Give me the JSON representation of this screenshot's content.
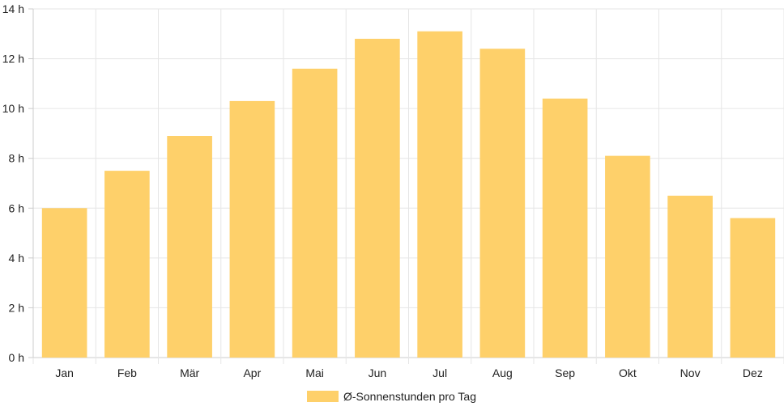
{
  "chart_data": {
    "type": "bar",
    "categories": [
      "Jan",
      "Feb",
      "Mär",
      "Apr",
      "Mai",
      "Jun",
      "Jul",
      "Aug",
      "Sep",
      "Okt",
      "Nov",
      "Dez"
    ],
    "series": [
      {
        "name": "Ø-Sonnenstunden pro Tag",
        "values": [
          6.0,
          7.5,
          8.9,
          10.3,
          11.6,
          12.8,
          13.1,
          12.4,
          10.4,
          8.1,
          6.5,
          5.6
        ]
      }
    ],
    "y_ticks": [
      "0 h",
      "2 h",
      "4 h",
      "6 h",
      "8 h",
      "10 h",
      "12 h",
      "14 h"
    ],
    "ylim": [
      0,
      14
    ],
    "grid": true,
    "legend_position": "bottom",
    "colors": {
      "bar_fill": "#fed06a",
      "grid": "#e6e6e6",
      "axis": "#cccccc",
      "text": "#222222"
    }
  }
}
